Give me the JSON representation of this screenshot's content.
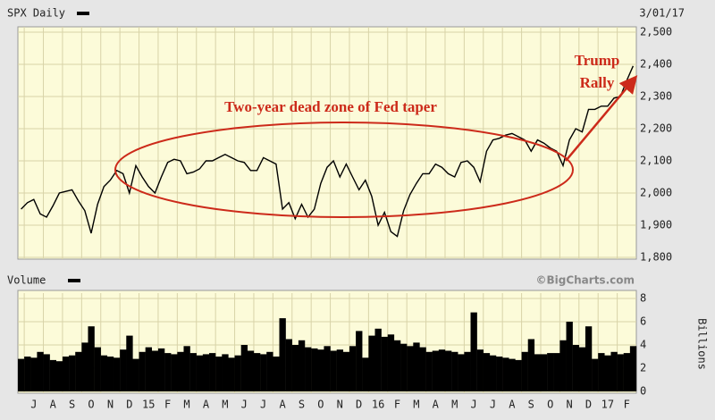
{
  "chart_data": [
    {
      "type": "line",
      "title": "SPX Daily",
      "date_label": "3/01/17",
      "color": "#000000",
      "grid": true,
      "annotations": [
        "Two-year dead zone of Fed taper",
        "Trump",
        "Rally"
      ],
      "values": [
        1950,
        1970,
        1980,
        1935,
        1925,
        1960,
        2000,
        2005,
        2010,
        1975,
        1945,
        1875,
        1965,
        2020,
        2040,
        2070,
        2060,
        2000,
        2085,
        2050,
        2020,
        2000,
        2050,
        2095,
        2105,
        2100,
        2060,
        2065,
        2075,
        2100,
        2100,
        2110,
        2120,
        2110,
        2100,
        2095,
        2070,
        2070,
        2110,
        2100,
        2090,
        1950,
        1970,
        1920,
        1965,
        1925,
        1950,
        2030,
        2080,
        2100,
        2050,
        2090,
        2050,
        2010,
        2040,
        1990,
        1900,
        1940,
        1880,
        1865,
        1945,
        1995,
        2030,
        2060,
        2060,
        2090,
        2080,
        2060,
        2050,
        2095,
        2100,
        2080,
        2035,
        2130,
        2165,
        2170,
        2180,
        2185,
        2175,
        2165,
        2130,
        2165,
        2155,
        2140,
        2130,
        2085,
        2165,
        2200,
        2190,
        2260,
        2260,
        2270,
        2270,
        2295,
        2300,
        2350,
        2395
      ],
      "ylim": [
        1800,
        2500
      ],
      "yticks": [
        {
          "value": 1800,
          "label": "1,800"
        },
        {
          "value": 1900,
          "label": "1,900"
        },
        {
          "value": 2000,
          "label": "2,000"
        },
        {
          "value": 2100,
          "label": "2,100"
        },
        {
          "value": 2200,
          "label": "2,200"
        },
        {
          "value": 2300,
          "label": "2,300"
        },
        {
          "value": 2400,
          "label": "2,400"
        },
        {
          "value": 2500,
          "label": "2,500"
        }
      ]
    },
    {
      "type": "bar",
      "title": "Volume",
      "source": "©BigCharts.com",
      "y_label": "Billions",
      "color": "#000000",
      "grid": true,
      "categories": [
        null,
        "J",
        null,
        null,
        "A",
        null,
        null,
        "S",
        null,
        null,
        "O",
        null,
        null,
        "N",
        null,
        null,
        "D",
        null,
        null,
        "15",
        null,
        null,
        "F",
        null,
        null,
        "M",
        null,
        null,
        "A",
        null,
        null,
        "M",
        null,
        null,
        "J",
        null,
        null,
        "J",
        null,
        null,
        "A",
        null,
        null,
        "S",
        null,
        null,
        "O",
        null,
        null,
        "N",
        null,
        null,
        "D",
        null,
        null,
        "16",
        null,
        null,
        "F",
        null,
        null,
        "M",
        null,
        null,
        "A",
        null,
        null,
        "M",
        null,
        null,
        "J",
        null,
        null,
        "J",
        null,
        null,
        "A",
        null,
        null,
        "S",
        null,
        null,
        "O",
        null,
        null,
        "N",
        null,
        null,
        "D",
        null,
        null,
        "17",
        null,
        null,
        "F",
        null,
        null
      ],
      "values": [
        2.8,
        3.0,
        2.9,
        3.4,
        3.2,
        2.7,
        2.6,
        3.0,
        3.1,
        3.4,
        4.2,
        5.6,
        3.8,
        3.1,
        3.0,
        2.9,
        3.6,
        4.8,
        2.8,
        3.4,
        3.8,
        3.5,
        3.7,
        3.3,
        3.2,
        3.4,
        3.9,
        3.3,
        3.1,
        3.2,
        3.3,
        3.0,
        3.2,
        2.9,
        3.1,
        4.0,
        3.5,
        3.3,
        3.2,
        3.4,
        3.0,
        6.3,
        4.5,
        4.0,
        4.4,
        3.8,
        3.7,
        3.6,
        3.9,
        3.5,
        3.6,
        3.4,
        3.9,
        5.2,
        2.9,
        4.8,
        5.4,
        4.7,
        4.9,
        4.4,
        4.1,
        3.9,
        4.2,
        3.8,
        3.4,
        3.5,
        3.6,
        3.5,
        3.4,
        3.2,
        3.4,
        6.8,
        3.6,
        3.3,
        3.1,
        3.0,
        2.9,
        2.8,
        2.7,
        3.4,
        4.5,
        3.2,
        3.2,
        3.3,
        3.3,
        4.4,
        6.0,
        4.0,
        3.8,
        5.6,
        2.8,
        3.3,
        3.1,
        3.4,
        3.2,
        3.3,
        3.9
      ],
      "ylim": [
        0,
        8
      ],
      "yticks": [
        0,
        2,
        4,
        6,
        8
      ]
    }
  ]
}
